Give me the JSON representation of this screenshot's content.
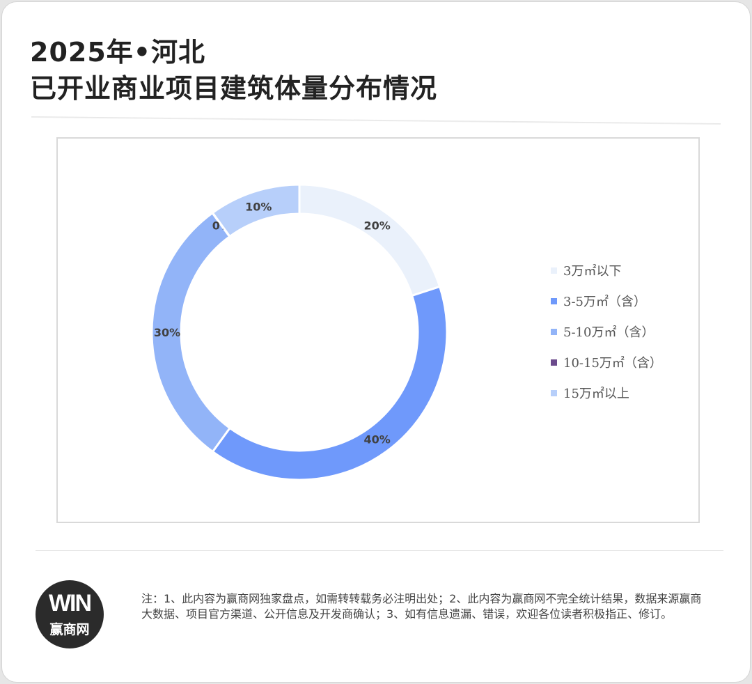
{
  "header": {
    "title_line1": "2025年•河北",
    "title_line2": "已开业商业项目建筑体量分布情况"
  },
  "chart_data": {
    "type": "pie",
    "subtype": "donut",
    "title": "",
    "legend_position": "right",
    "slices": [
      {
        "label": "3万㎡以下",
        "value": 20,
        "display": "20%",
        "color": "#eaf1fb"
      },
      {
        "label": "3-5万㎡（含）",
        "value": 40,
        "display": "40%",
        "color": "#6f99fb"
      },
      {
        "label": "5-10万㎡（含）",
        "value": 30,
        "display": "30%",
        "color": "#92b4f8"
      },
      {
        "label": "10-15万㎡（含）",
        "value": 0,
        "display": "0%",
        "color": "#6b4a8c"
      },
      {
        "label": "15万㎡以上",
        "value": 10,
        "display": "10%",
        "color": "#b7cffa"
      }
    ]
  },
  "footer": {
    "logo_mark": "WIN",
    "logo_text": "赢商网",
    "note": "注：1、此内容为赢商网独家盘点，如需转转载务必注明出处；2、此内容为赢商网不完全统计结果，数据来源赢商大数据、项目官方渠道、公开信息及开发商确认；3、如有信息遗漏、错误，欢迎各位读者积极指正、修订。"
  }
}
